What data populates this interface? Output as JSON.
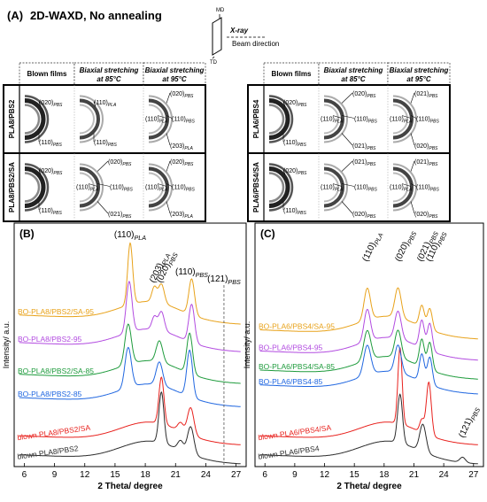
{
  "figure": {
    "part_a": {
      "label": "(A)",
      "title": "2D-WAXD, No annealing",
      "schematic": {
        "md": "MD",
        "td": "TD",
        "xray": "X-ray",
        "beam": "Beam direction"
      },
      "left_block": {
        "columns": [
          {
            "line1": "Blown films",
            "line2": ""
          },
          {
            "line1": "Biaxial stretching",
            "line2": "at 85°C"
          },
          {
            "line1": "Biaxial stretching",
            "line2": "at 95°C"
          }
        ],
        "rows": [
          {
            "name": "PLA8/PBS2",
            "cells": [
              [
                "(020)PBS",
                "(110)PBS"
              ],
              [
                "(110)PLA",
                "(110)PBS"
              ],
              [
                "(110)PLA",
                "(020)PBS",
                "(110)PBS",
                "(203)PLA"
              ]
            ]
          },
          {
            "name": "PLA8/PBS2/SA",
            "cells": [
              [
                "(020)PBS",
                "(110)PBS"
              ],
              [
                "(110)PLA",
                "(020)PBS",
                "(110)PBS",
                "(021)PBS"
              ],
              [
                "(110)PLA",
                "(020)PBS",
                "(110)PBS",
                "(203)PLA"
              ]
            ]
          }
        ]
      },
      "right_block": {
        "columns": [
          {
            "line1": "Blown films",
            "line2": ""
          },
          {
            "line1": "Biaxial stretching",
            "line2": "at 85°C"
          },
          {
            "line1": "Biaxial stretching",
            "line2": "at 95°C"
          }
        ],
        "rows": [
          {
            "name": "PLA6/PBS4",
            "cells": [
              [
                "(020)PBS",
                "(110)PBS"
              ],
              [
                "(110)PLA",
                "(020)PBS",
                "(110)PBS",
                "(021)PBS"
              ],
              [
                "(110)PLA",
                "(021)PBS",
                "(110)PBS",
                "(020)PBS"
              ]
            ]
          },
          {
            "name": "PLA6/PBS4/SA",
            "cells": [
              [
                "(020)PBS",
                "(110)PBS"
              ],
              [
                "(110)PLA",
                "(021)PBS",
                "(110)PBS",
                "(020)PBS"
              ],
              [
                "(110)PLA",
                "(021)PBS",
                "(110)PBS",
                "(020)PBS"
              ]
            ]
          }
        ]
      }
    },
    "colors": {
      "black": "#2b2b2b",
      "red": "#e8211d",
      "blue": "#1f66e0",
      "green": "#1e9b3c",
      "purple": "#b24be0",
      "orange": "#e8a21a"
    }
  },
  "chart_data": [
    {
      "panel": "(B)",
      "type": "line",
      "xlabel": "2 Theta/ degree",
      "ylabel": "Intensity/ a.u.",
      "xlim": [
        5,
        28
      ],
      "xticks": [
        6,
        9,
        12,
        15,
        18,
        21,
        24,
        27
      ],
      "peak_labels": [
        "(110)PLA",
        "(203)PLA",
        "(020)PBS",
        "(110)PBS",
        "(121)PBS"
      ],
      "peak_positions": [
        16.5,
        18.9,
        19.6,
        22.6,
        25.8
      ],
      "dashed_marker_x": 25.8,
      "series": [
        {
          "name": "blown PLA8/PBS2",
          "color": "black",
          "offset": 0.0,
          "peaks": [
            [
              19.6,
              2.4,
              0.35
            ],
            [
              22.5,
              1.3,
              0.45
            ],
            [
              21.5,
              0.45,
              0.4
            ]
          ]
        },
        {
          "name": "blown PLA8/PBS2/SA",
          "color": "red",
          "offset": 0.9,
          "peaks": [
            [
              19.6,
              2.2,
              0.35
            ],
            [
              22.5,
              1.3,
              0.45
            ],
            [
              21.5,
              0.4,
              0.4
            ]
          ]
        },
        {
          "name": "BO-PLA8/PBS2-85",
          "color": "blue",
          "offset": 2.7,
          "peaks": [
            [
              16.3,
              1.9,
              0.45
            ],
            [
              19.4,
              1.1,
              0.45
            ],
            [
              22.4,
              2.2,
              0.4
            ]
          ]
        },
        {
          "name": "BO-PLA8/PBS2/SA-85",
          "color": "green",
          "offset": 3.8,
          "peaks": [
            [
              16.3,
              1.9,
              0.45
            ],
            [
              19.4,
              1.0,
              0.45
            ],
            [
              22.4,
              1.9,
              0.4
            ]
          ]
        },
        {
          "name": "BO-PLA8/PBS2-95",
          "color": "purple",
          "offset": 5.3,
          "peaks": [
            [
              16.4,
              2.4,
              0.4
            ],
            [
              18.9,
              0.6,
              0.35
            ],
            [
              19.6,
              0.9,
              0.4
            ],
            [
              22.6,
              1.8,
              0.4
            ]
          ]
        },
        {
          "name": "BO-PLA8/PBS2/SA-95",
          "color": "orange",
          "offset": 6.6,
          "peaks": [
            [
              16.5,
              2.9,
              0.35
            ],
            [
              18.9,
              0.7,
              0.35
            ],
            [
              19.6,
              0.9,
              0.4
            ],
            [
              22.6,
              1.7,
              0.4
            ]
          ]
        }
      ]
    },
    {
      "panel": "(C)",
      "type": "line",
      "xlabel": "2 Theta/ degree",
      "ylabel": "Intensity/ a.u.",
      "xlim": [
        5,
        28
      ],
      "xticks": [
        6,
        9,
        12,
        15,
        18,
        21,
        24,
        27
      ],
      "peak_labels": [
        "(110)PLA",
        "(020)PBS",
        "(021)PBS",
        "(110)PBS",
        "(121)PBS"
      ],
      "peak_positions": [
        16.3,
        19.6,
        21.8,
        22.7,
        26.0
      ],
      "series": [
        {
          "name": "blown PLA6/PBS4",
          "color": "black",
          "offset": 0.0,
          "peaks": [
            [
              19.6,
              2.3,
              0.35
            ],
            [
              21.9,
              1.3,
              0.45
            ],
            [
              25.9,
              0.25,
              0.4
            ]
          ]
        },
        {
          "name": "blown PLA6/PBS4/SA",
          "color": "red",
          "offset": 0.9,
          "peaks": [
            [
              19.6,
              3.6,
              0.3
            ],
            [
              22.5,
              2.5,
              0.35
            ],
            [
              21.8,
              0.6,
              0.3
            ]
          ]
        },
        {
          "name": "BO-PLA6/PBS4-85",
          "color": "blue",
          "offset": 3.3,
          "peaks": [
            [
              16.3,
              1.4,
              0.5
            ],
            [
              19.4,
              1.3,
              0.45
            ],
            [
              21.8,
              1.3,
              0.35
            ],
            [
              22.6,
              1.3,
              0.35
            ]
          ]
        },
        {
          "name": "BO-PLA6/PBS4/SA-85",
          "color": "green",
          "offset": 4.0,
          "peaks": [
            [
              16.3,
              1.4,
              0.5
            ],
            [
              19.4,
              1.3,
              0.45
            ],
            [
              21.8,
              1.3,
              0.35
            ],
            [
              22.6,
              1.3,
              0.35
            ]
          ]
        },
        {
          "name": "BO-PLA6/PBS4-95",
          "color": "purple",
          "offset": 4.9,
          "peaks": [
            [
              16.3,
              1.5,
              0.45
            ],
            [
              19.4,
              1.3,
              0.45
            ],
            [
              21.8,
              1.3,
              0.35
            ],
            [
              22.6,
              1.3,
              0.35
            ]
          ]
        },
        {
          "name": "BO-PLA6/PBS4/SA-95",
          "color": "orange",
          "offset": 5.9,
          "peaks": [
            [
              16.3,
              1.5,
              0.45
            ],
            [
              19.4,
              1.4,
              0.45
            ],
            [
              21.8,
              1.0,
              0.35
            ],
            [
              22.6,
              1.0,
              0.35
            ]
          ]
        }
      ]
    }
  ]
}
